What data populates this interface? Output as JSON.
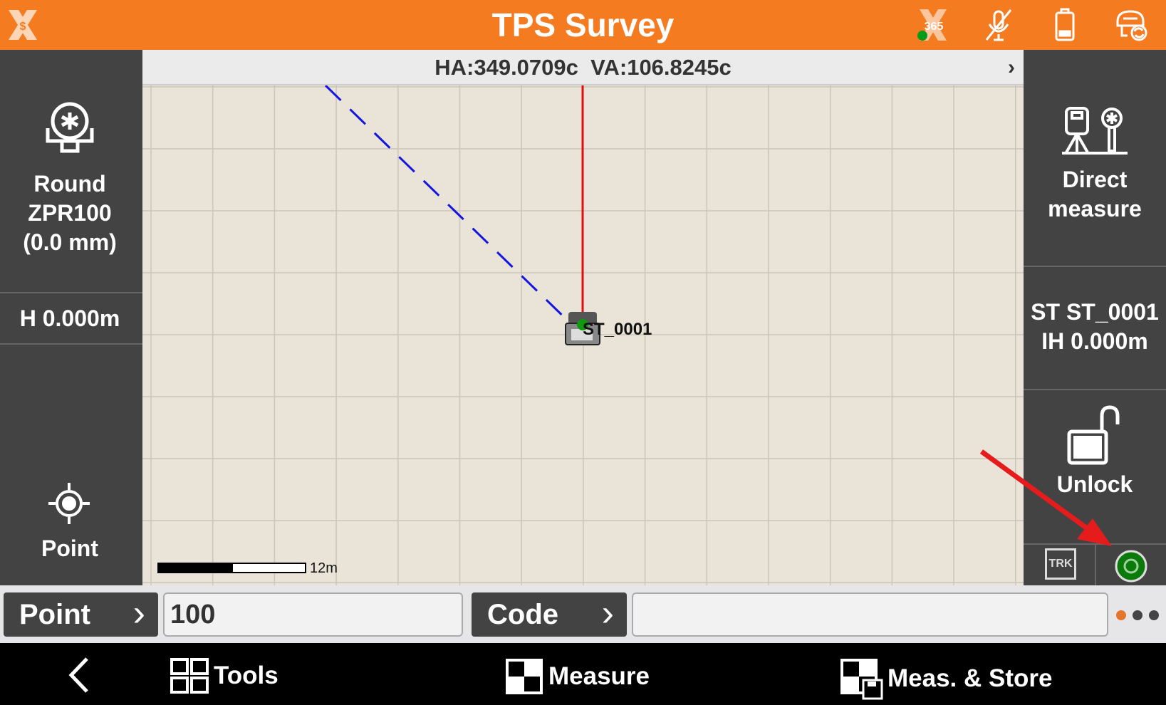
{
  "header": {
    "title": "TPS Survey",
    "icons": [
      "app-logo-icon",
      "x365-status-icon",
      "mic-muted-icon",
      "battery-icon",
      "instrument-connect-icon"
    ],
    "x365_label": "365",
    "accent": "#f47b20"
  },
  "left_panel": {
    "prism_lines": [
      "Round",
      "ZPR100",
      "(0.0 mm)"
    ],
    "height": "H 0.000m",
    "point_label": "Point"
  },
  "map": {
    "angles": "HA:349.0709c  VA:106.8245c",
    "station_label": "ST_0001",
    "scale_label": "12m"
  },
  "right_panel": {
    "direct_lines": [
      "Direct",
      "measure"
    ],
    "station_lines": [
      "ST ST_0001",
      "IH 0.000m"
    ],
    "unlock_label": "Unlock",
    "trk_label": "TRK"
  },
  "input_row": {
    "point_button": "Point",
    "point_value": "100",
    "code_button": "Code",
    "code_value": "",
    "page_dots": 3,
    "active_dot": 0
  },
  "nav": {
    "tools": "Tools",
    "measure": "Measure",
    "meas_store": "Meas. & Store"
  }
}
